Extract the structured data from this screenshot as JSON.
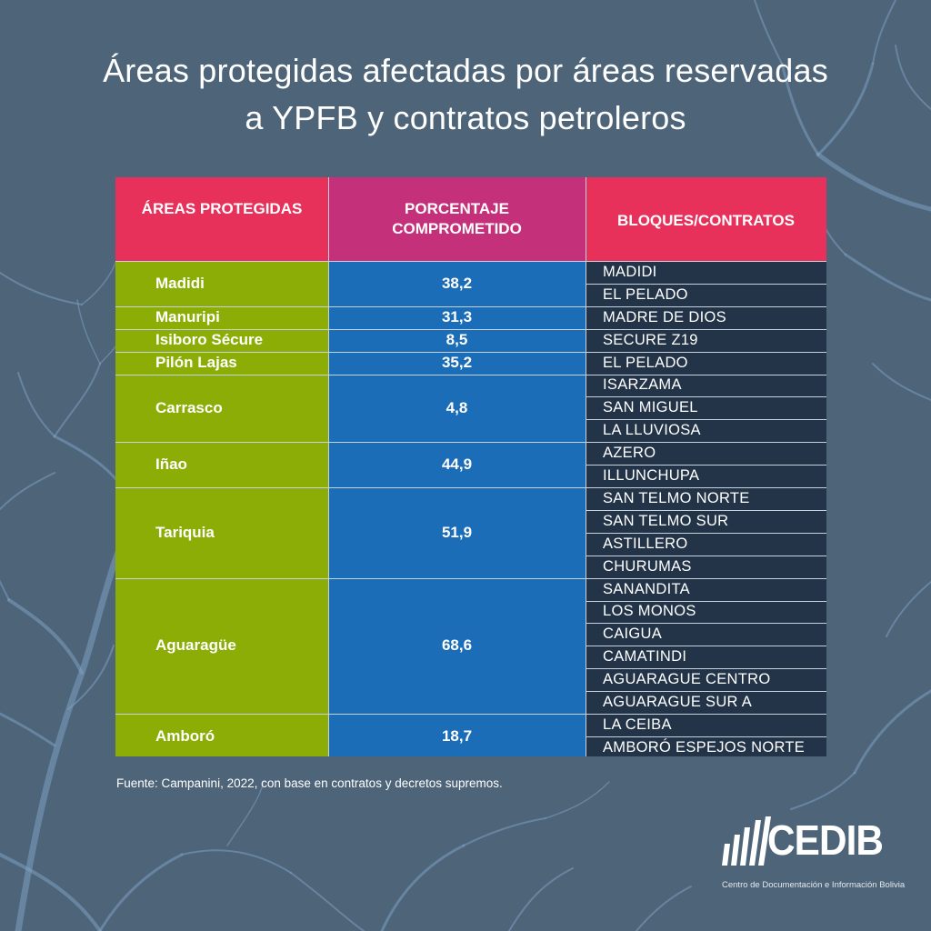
{
  "title": {
    "line1": "Áreas protegidas afectadas por áreas reservadas",
    "line2": "a YPFB y contratos petroleros"
  },
  "table": {
    "headers": {
      "areas": "ÁREAS PROTEGIDAS",
      "percent_line1": "PORCENTAJE",
      "percent_line2": "COMPROMETIDO",
      "blocks": "BLOQUES/CONTRATOS"
    },
    "groups": [
      {
        "area": "Madidi",
        "percent": "38,2",
        "blocks": [
          "MADIDI",
          "EL PELADO"
        ]
      },
      {
        "area": "Manuripi",
        "percent": "31,3",
        "blocks": [
          "MADRE DE DIOS"
        ]
      },
      {
        "area": "Isiboro Sécure",
        "percent": "8,5",
        "blocks": [
          "SECURE Z19"
        ]
      },
      {
        "area": "Pilón Lajas",
        "percent": "35,2",
        "blocks": [
          "EL PELADO"
        ]
      },
      {
        "area": "Carrasco",
        "percent": "4,8",
        "blocks": [
          "ISARZAMA",
          "SAN MIGUEL",
          "LA LLUVIOSA"
        ]
      },
      {
        "area": "Iñao",
        "percent": "44,9",
        "blocks": [
          "AZERO",
          "ILLUNCHUPA"
        ]
      },
      {
        "area": "Tariquia",
        "percent": "51,9",
        "blocks": [
          "SAN TELMO NORTE",
          "SAN TELMO SUR",
          "ASTILLERO",
          "CHURUMAS"
        ]
      },
      {
        "area": "Aguaragüe",
        "percent": "68,6",
        "blocks": [
          "SANANDITA",
          "LOS MONOS",
          "CAIGUA",
          "CAMATINDI",
          "AGUARAGUE CENTRO",
          "AGUARAGUE SUR A"
        ]
      },
      {
        "area": "Amboró",
        "percent": "18,7",
        "blocks": [
          "LA CEIBA",
          "AMBORÓ ESPEJOS NORTE"
        ]
      }
    ]
  },
  "source": "Fuente: Campanini, 2022, con base en contratos y decretos supremos.",
  "logo": {
    "name": "CEDIB",
    "subtitle": "Centro de Documentación e Información Bolivia"
  },
  "colors": {
    "background": "#4d6479",
    "header_red": "#e8315a",
    "header_magenta": "#c4307a",
    "area_green": "#8cad06",
    "percent_blue": "#1c6db8",
    "blocks_navy": "#233449"
  }
}
